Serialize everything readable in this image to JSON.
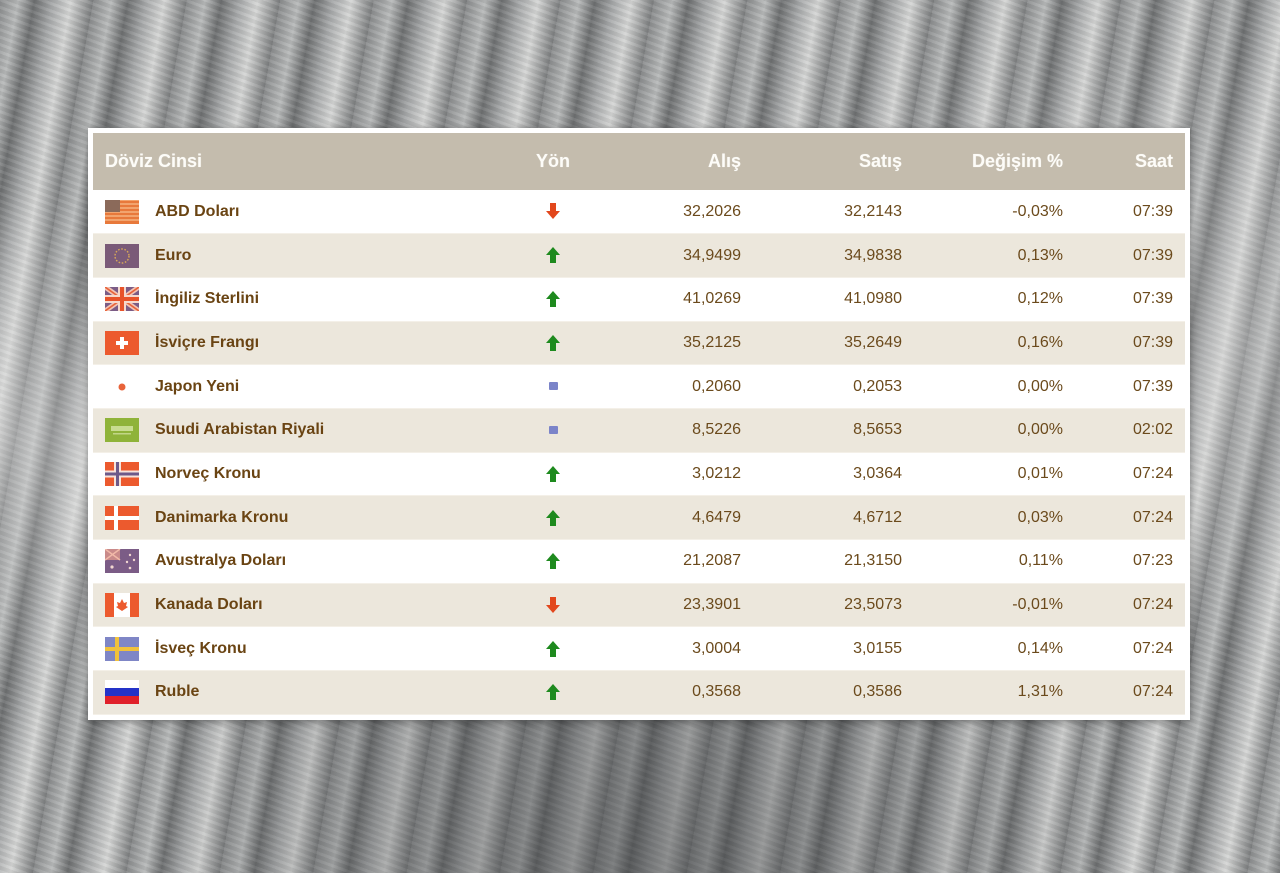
{
  "table": {
    "headers": {
      "currency": "Döviz Cinsi",
      "direction": "Yön",
      "buy": "Alış",
      "sell": "Satış",
      "change": "Değişim %",
      "time": "Saat"
    },
    "colors": {
      "header_bg": "#c4bcad",
      "row_alt_bg": "#ece7dc",
      "text": "#6b4a1c",
      "up": "#1e8a1e",
      "down": "#e2471c",
      "flat": "#7b84c9"
    },
    "rows": [
      {
        "flag": "usa-flag-icon",
        "name": "ABD Doları",
        "direction": "down",
        "buy": "32,2026",
        "sell": "32,2143",
        "change": "-0,03%",
        "time": "07:39"
      },
      {
        "flag": "eu-flag-icon",
        "name": "Euro",
        "direction": "up",
        "buy": "34,9499",
        "sell": "34,9838",
        "change": "0,13%",
        "time": "07:39"
      },
      {
        "flag": "uk-flag-icon",
        "name": "İngiliz Sterlini",
        "direction": "up",
        "buy": "41,0269",
        "sell": "41,0980",
        "change": "0,12%",
        "time": "07:39"
      },
      {
        "flag": "switzerland-flag-icon",
        "name": "İsviçre Frangı",
        "direction": "up",
        "buy": "35,2125",
        "sell": "35,2649",
        "change": "0,16%",
        "time": "07:39"
      },
      {
        "flag": "japan-flag-icon",
        "name": "Japon Yeni",
        "direction": "flat",
        "buy": "0,2060",
        "sell": "0,2053",
        "change": "0,00%",
        "time": "07:39"
      },
      {
        "flag": "saudi-flag-icon",
        "name": "Suudi Arabistan Riyali",
        "direction": "flat",
        "buy": "8,5226",
        "sell": "8,5653",
        "change": "0,00%",
        "time": "02:02"
      },
      {
        "flag": "norway-flag-icon",
        "name": "Norveç Kronu",
        "direction": "up",
        "buy": "3,0212",
        "sell": "3,0364",
        "change": "0,01%",
        "time": "07:24"
      },
      {
        "flag": "denmark-flag-icon",
        "name": "Danimarka Kronu",
        "direction": "up",
        "buy": "4,6479",
        "sell": "4,6712",
        "change": "0,03%",
        "time": "07:24"
      },
      {
        "flag": "australia-flag-icon",
        "name": "Avustralya Doları",
        "direction": "up",
        "buy": "21,2087",
        "sell": "21,3150",
        "change": "0,11%",
        "time": "07:23"
      },
      {
        "flag": "canada-flag-icon",
        "name": "Kanada Doları",
        "direction": "down",
        "buy": "23,3901",
        "sell": "23,5073",
        "change": "-0,01%",
        "time": "07:24"
      },
      {
        "flag": "sweden-flag-icon",
        "name": "İsveç Kronu",
        "direction": "up",
        "buy": "3,0004",
        "sell": "3,0155",
        "change": "0,14%",
        "time": "07:24"
      },
      {
        "flag": "russia-flag-icon",
        "name": "Ruble",
        "direction": "up",
        "buy": "0,3568",
        "sell": "0,3586",
        "change": "1,31%",
        "time": "07:24"
      }
    ]
  }
}
